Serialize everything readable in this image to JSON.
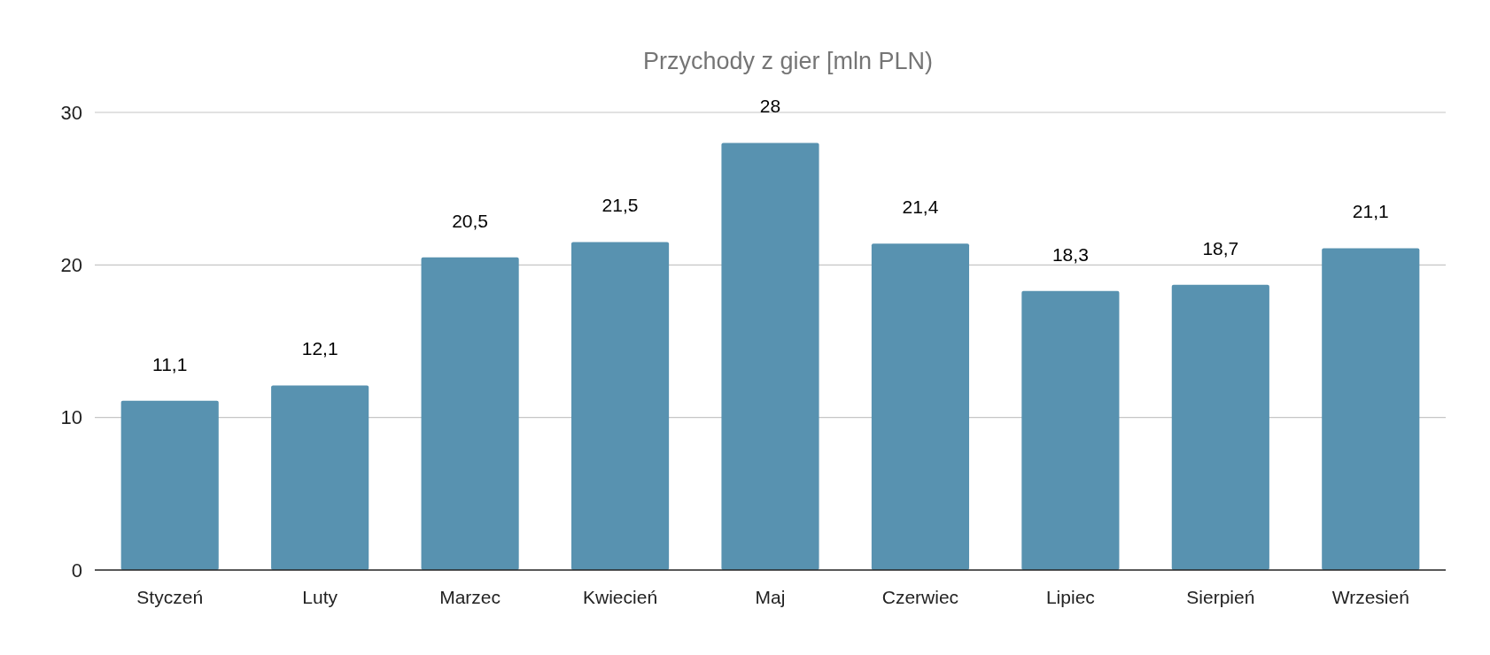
{
  "chart_data": {
    "type": "bar",
    "title": "Przychody z gier [mln PLN)",
    "categories": [
      "Styczeń",
      "Luty",
      "Marzec",
      "Kwiecień",
      "Maj",
      "Czerwiec",
      "Lipiec",
      "Sierpień",
      "Wrzesień"
    ],
    "values": [
      11.1,
      12.1,
      20.5,
      21.5,
      28,
      21.4,
      18.3,
      18.7,
      21.1
    ],
    "value_labels": [
      "11,1",
      "12,1",
      "20,5",
      "21,5",
      "28",
      "21,4",
      "18,3",
      "18,7",
      "21,1"
    ],
    "color": "#5892b0",
    "ylim": [
      0,
      30
    ],
    "yticks": [
      0,
      10,
      20,
      30
    ],
    "grid": "y"
  }
}
